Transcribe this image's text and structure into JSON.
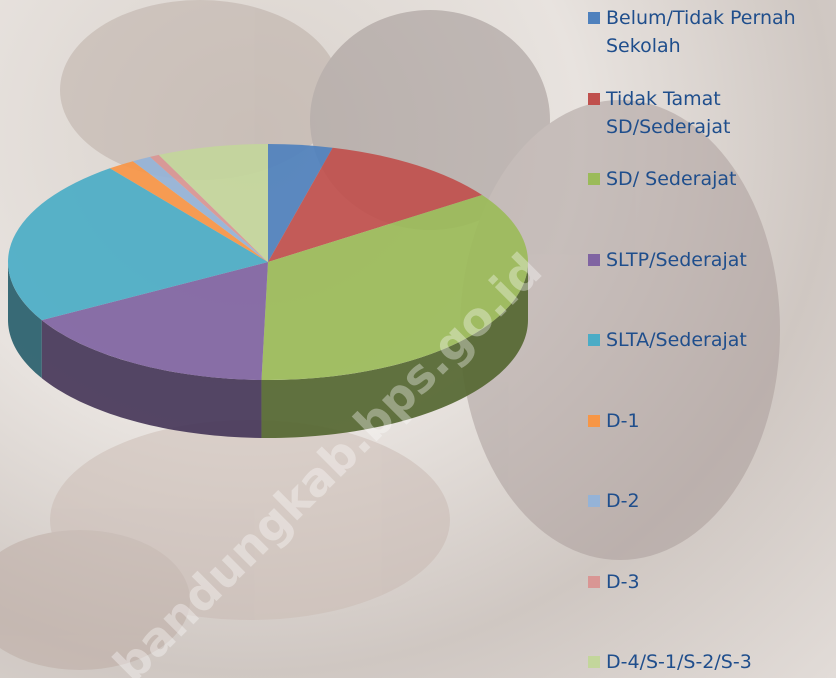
{
  "chart_data": {
    "type": "pie",
    "categories": [
      "Belum/Tidak Pernah Sekolah",
      "Tidak Tamat SD/Sederajat",
      "SD/ Sederajat",
      "SLTP/Sederajat",
      "SLTA/Sederajat",
      "D-1",
      "D-2",
      "D-3",
      "D-4/S-1/S-2/S-3"
    ],
    "values": [
      4.0,
      11.4,
      35.0,
      16.4,
      22.8,
      1.7,
      1.2,
      0.6,
      6.9
    ],
    "colors": [
      "#4f81bd",
      "#c0504d",
      "#9bbb59",
      "#8064a2",
      "#4bacc6",
      "#f79646",
      "#95b3d7",
      "#d99694",
      "#c3d69b"
    ],
    "watermark": "bandungkab.bps.go.id"
  }
}
